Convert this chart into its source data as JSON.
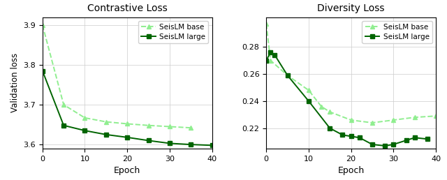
{
  "title1": "Contrastive Loss",
  "title2": "Diversity Loss",
  "xlabel": "Epoch",
  "ylabel": "Validation loss",
  "legend_base": "SeisLM base",
  "legend_large": "SeisLM large",
  "color_base": "#90EE90",
  "color_large": "#006400",
  "contrastive_epochs_base": [
    0,
    5,
    10,
    15,
    20,
    25,
    30,
    35
  ],
  "contrastive_base": [
    3.9,
    3.7,
    3.667,
    3.657,
    3.652,
    3.648,
    3.645,
    3.642
  ],
  "contrastive_epochs_large": [
    0,
    5,
    10,
    15,
    20,
    25,
    30,
    35,
    40
  ],
  "contrastive_large": [
    3.785,
    3.648,
    3.635,
    3.625,
    3.618,
    3.61,
    3.603,
    3.6,
    3.598
  ],
  "diversity_epochs_base": [
    0,
    1,
    5,
    10,
    13,
    15,
    20,
    25,
    30,
    35,
    40
  ],
  "diversity_base": [
    0.297,
    0.27,
    0.259,
    0.248,
    0.236,
    0.232,
    0.226,
    0.224,
    0.226,
    0.228,
    0.229
  ],
  "diversity_epochs_large": [
    0,
    1,
    2,
    5,
    10,
    15,
    18,
    20,
    22,
    25,
    28,
    30,
    33,
    35,
    38
  ],
  "diversity_large": [
    0.27,
    0.276,
    0.274,
    0.259,
    0.24,
    0.22,
    0.215,
    0.214,
    0.213,
    0.208,
    0.207,
    0.208,
    0.211,
    0.213,
    0.212
  ],
  "xlim": [
    0,
    40
  ],
  "contrastive_ylim": [
    3.59,
    3.92
  ],
  "diversity_ylim": [
    0.205,
    0.302
  ],
  "xticks": [
    0,
    10,
    20,
    30,
    40
  ],
  "contrastive_yticks": [
    3.6,
    3.7,
    3.8,
    3.9
  ],
  "diversity_yticks": [
    0.22,
    0.24,
    0.26,
    0.28
  ]
}
